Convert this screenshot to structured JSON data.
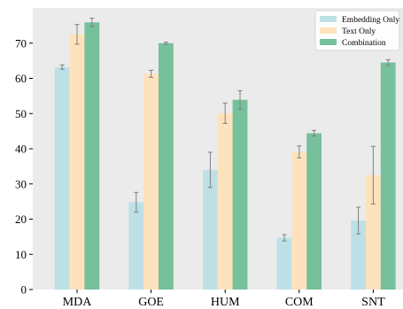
{
  "chart_data": {
    "type": "bar",
    "categories": [
      "MDA",
      "GOE",
      "HUM",
      "COM",
      "SNT"
    ],
    "series": [
      {
        "name": "Embedding Only",
        "color": "#bde0e6",
        "values": [
          63.2,
          24.8,
          34.0,
          14.7,
          19.6
        ],
        "errors": [
          0.6,
          2.8,
          5.0,
          0.9,
          3.8
        ]
      },
      {
        "name": "Text Only",
        "color": "#fde2bd",
        "values": [
          72.5,
          61.3,
          50.1,
          39.1,
          32.5
        ],
        "errors": [
          2.8,
          1.0,
          2.9,
          1.7,
          8.2
        ]
      },
      {
        "name": "Combination",
        "color": "#76c09b",
        "values": [
          75.9,
          70.0,
          53.9,
          44.4,
          64.5
        ],
        "errors": [
          1.2,
          0.3,
          2.6,
          0.8,
          0.8
        ]
      }
    ],
    "ylim": [
      0,
      80
    ],
    "yticks": [
      0,
      10,
      20,
      30,
      40,
      50,
      60,
      70
    ],
    "title": "",
    "xlabel": "",
    "ylabel": "",
    "grid": false,
    "legend_position": "top-right",
    "background": "#ebebeb",
    "error_bar_color": "#7f7f7f"
  }
}
